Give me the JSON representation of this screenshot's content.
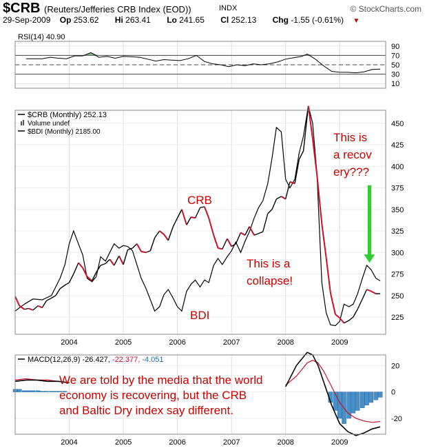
{
  "header": {
    "symbol": "$CRB",
    "fullname": "(Reuters/Jefferies CRB Index (EOD))",
    "exchange": "INDX",
    "brand": "© StockCharts.com",
    "date": "29-Sep-2009",
    "open_label": "Op",
    "open": "253.62",
    "high_label": "Hi",
    "high": "263.41",
    "low_label": "Lo",
    "low": "241.65",
    "close_label": "Cl",
    "close": "252.13",
    "change_label": "Chg",
    "change": "-1.55 (-0.61%)",
    "change_arrow": "▼"
  },
  "colors": {
    "price_up": "#000000",
    "price_down": "#c8102e",
    "rsi_fill": "#6b9a6b",
    "macd_hist": "#4a90c8",
    "annotation_red": "#cc0000",
    "arrow_green": "#33cc33"
  },
  "chart_data": [
    {
      "type": "line",
      "legend": "RSI(14) 40.90",
      "x": [
        2003.2,
        2003.35,
        2003.5,
        2003.65,
        2003.8,
        2003.95,
        2004.1,
        2004.25,
        2004.4,
        2004.55,
        2004.7,
        2004.85,
        2005.0,
        2005.15,
        2005.3,
        2005.45,
        2005.6,
        2005.75,
        2005.9,
        2006.05,
        2006.2,
        2006.35,
        2006.5,
        2006.65,
        2006.8,
        2006.95,
        2007.1,
        2007.25,
        2007.4,
        2007.55,
        2007.7,
        2007.85,
        2008.0,
        2008.15,
        2008.3,
        2008.4,
        2008.55,
        2008.7,
        2008.85,
        2009.0,
        2009.15,
        2009.3,
        2009.45,
        2009.6,
        2009.75
      ],
      "values": [
        63,
        63,
        63,
        66,
        64,
        63,
        69,
        69,
        76,
        66,
        68,
        64,
        68,
        67,
        66,
        62,
        58,
        61,
        60,
        59,
        63,
        70,
        57,
        52,
        50,
        46,
        50,
        48,
        52,
        50,
        52,
        56,
        62,
        65,
        68,
        73,
        62,
        48,
        36,
        34,
        34,
        33,
        35,
        40,
        40.9
      ],
      "ylim": [
        0,
        100
      ],
      "ticks": [
        10,
        30,
        50,
        70,
        90
      ],
      "reference_lines": [
        30,
        50,
        70
      ]
    },
    {
      "type": "line",
      "series": [
        {
          "name": "$CRB (Monthly) 252.13",
          "x": [
            2003.0,
            2003.08,
            2003.17,
            2003.25,
            2003.33,
            2003.42,
            2003.5,
            2003.58,
            2003.67,
            2003.75,
            2003.83,
            2003.92,
            2004.0,
            2004.08,
            2004.17,
            2004.25,
            2004.33,
            2004.42,
            2004.5,
            2004.58,
            2004.67,
            2004.75,
            2004.83,
            2004.92,
            2005.0,
            2005.08,
            2005.17,
            2005.25,
            2005.33,
            2005.42,
            2005.5,
            2005.58,
            2005.67,
            2005.75,
            2005.83,
            2005.92,
            2006.0,
            2006.08,
            2006.17,
            2006.25,
            2006.33,
            2006.42,
            2006.5,
            2006.58,
            2006.67,
            2006.75,
            2006.83,
            2006.92,
            2007.0,
            2007.08,
            2007.17,
            2007.25,
            2007.33,
            2007.42,
            2007.5,
            2007.58,
            2007.67,
            2007.75,
            2007.83,
            2007.92,
            2008.0,
            2008.08,
            2008.17,
            2008.25,
            2008.33,
            2008.42,
            2008.5,
            2008.58,
            2008.67,
            2008.75,
            2008.83,
            2008.92,
            2009.0,
            2009.08,
            2009.17,
            2009.25,
            2009.33,
            2009.42,
            2009.5,
            2009.58,
            2009.67,
            2009.75
          ],
          "values": [
            249,
            238,
            234,
            235,
            233,
            238,
            236,
            244,
            247,
            250,
            258,
            262,
            265,
            275,
            288,
            282,
            272,
            267,
            277,
            285,
            287,
            292,
            285,
            296,
            286,
            303,
            305,
            310,
            301,
            300,
            302,
            317,
            325,
            321,
            314,
            330,
            340,
            350,
            332,
            341,
            340,
            352,
            353,
            340,
            320,
            305,
            304,
            316,
            307,
            310,
            323,
            320,
            330,
            320,
            322,
            324,
            345,
            350,
            362,
            365,
            362,
            382,
            380,
            408,
            418,
            470,
            432,
            390,
            333,
            294,
            253,
            228,
            224,
            218,
            221,
            225,
            234,
            246,
            257,
            255,
            252,
            252.13
          ]
        },
        {
          "name": "$BDI (Monthly) 2185.00",
          "x": [
            2003.0,
            2003.17,
            2003.33,
            2003.5,
            2003.67,
            2003.83,
            2003.92,
            2004.0,
            2004.08,
            2004.17,
            2004.25,
            2004.33,
            2004.42,
            2004.5,
            2004.58,
            2004.67,
            2004.75,
            2004.83,
            2004.92,
            2005.0,
            2005.08,
            2005.17,
            2005.25,
            2005.33,
            2005.42,
            2005.5,
            2005.58,
            2005.67,
            2005.75,
            2005.83,
            2005.92,
            2006.0,
            2006.08,
            2006.17,
            2006.25,
            2006.33,
            2006.42,
            2006.5,
            2006.58,
            2006.67,
            2006.75,
            2006.83,
            2006.92,
            2007.0,
            2007.08,
            2007.17,
            2007.25,
            2007.33,
            2007.42,
            2007.5,
            2007.58,
            2007.67,
            2007.75,
            2007.83,
            2007.92,
            2008.0,
            2008.08,
            2008.17,
            2008.25,
            2008.33,
            2008.42,
            2008.5,
            2008.58,
            2008.67,
            2008.75,
            2008.83,
            2008.92,
            2009.0,
            2009.08,
            2009.17,
            2009.25,
            2009.33,
            2009.42,
            2009.5,
            2009.58,
            2009.67,
            2009.75
          ],
          "values": [
            232,
            240,
            246,
            245,
            250,
            270,
            286,
            310,
            325,
            310,
            297,
            270,
            266,
            272,
            295,
            290,
            300,
            310,
            305,
            308,
            307,
            302,
            286,
            270,
            258,
            245,
            232,
            237,
            251,
            257,
            247,
            237,
            232,
            255,
            263,
            268,
            260,
            268,
            265,
            285,
            293,
            286,
            295,
            302,
            312,
            300,
            313,
            324,
            340,
            352,
            360,
            380,
            410,
            445,
            440,
            385,
            375,
            385,
            415,
            435,
            470,
            450,
            390,
            265,
            230,
            216,
            215,
            220,
            240,
            237,
            240,
            252,
            270,
            285,
            280,
            270,
            267
          ]
        }
      ],
      "legend": [
        "$CRB (Monthly) 252.13",
        "Volume undef",
        "$BDI (Monthly) 2185.00"
      ],
      "ylim": [
        205,
        465
      ],
      "ticks": [
        225,
        250,
        275,
        300,
        325,
        350,
        375,
        400,
        425,
        450
      ],
      "xticks": [
        "2004",
        "2005",
        "2006",
        "2007",
        "2008",
        "2009"
      ],
      "annotations": [
        "CRB",
        "BDI",
        "This is a",
        "collapse!",
        "This is",
        "a recov",
        "ery???"
      ]
    },
    {
      "type": "line",
      "legend": "MACD(12,26,9) -26.427, -22.377, -4.051",
      "macd_x": [
        2003.0,
        2003.2,
        2003.4,
        2003.6,
        2003.8,
        2004.0,
        2008.0,
        2008.2,
        2008.4,
        2008.5,
        2008.6,
        2008.7,
        2008.85,
        2009.0,
        2009.15,
        2009.3,
        2009.45,
        2009.6,
        2009.75
      ],
      "macd": [
        8,
        9,
        9,
        8,
        8,
        7,
        4,
        20,
        30,
        28,
        20,
        8,
        -10,
        -24,
        -30,
        -33,
        -31,
        -28,
        -26.427
      ],
      "signal": [
        9,
        10,
        9,
        9,
        8,
        7,
        5,
        12,
        22,
        24,
        22,
        16,
        4,
        -8,
        -16,
        -20,
        -22,
        -23,
        -22.377
      ],
      "histogram_x": [
        2003.0,
        2003.08,
        2003.17,
        2003.25,
        2003.33,
        2003.42,
        2003.5,
        2003.58,
        2003.67,
        2003.75,
        2003.83,
        2003.92,
        2008.83,
        2008.92,
        2009.0,
        2009.08,
        2009.17,
        2009.25,
        2009.33,
        2009.42,
        2009.5,
        2009.58,
        2009.67,
        2009.75
      ],
      "histogram": [
        2,
        2,
        1,
        1,
        1,
        1,
        0.5,
        0.5,
        0.5,
        0.5,
        0.5,
        0.5,
        -8,
        -14,
        -20,
        -24,
        -20,
        -16,
        -14,
        -12,
        -10,
        -8,
        -6,
        -4.051
      ],
      "ylim": [
        -32,
        28
      ],
      "ticks": [
        -20,
        0,
        20
      ],
      "xticks": [
        "2004",
        "2005",
        "2006",
        "2007",
        "2008",
        "2009"
      ],
      "annotations": [
        "We are told by the media that the world",
        "economy is recovering, but the CRB",
        "and Baltic Dry index say different."
      ]
    }
  ]
}
